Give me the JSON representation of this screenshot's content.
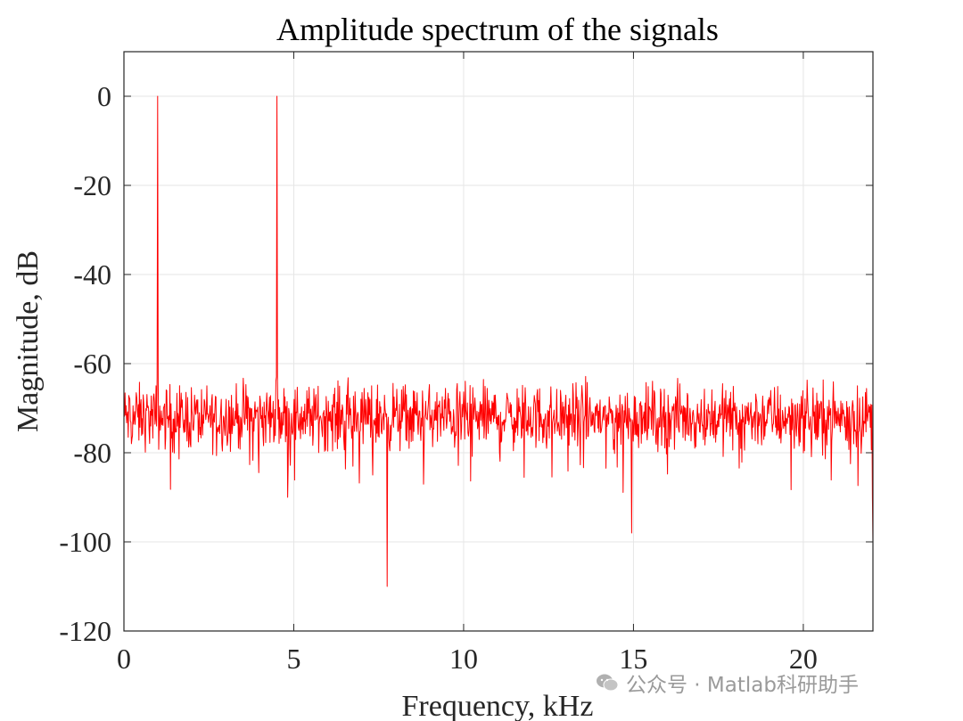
{
  "chart_data": {
    "type": "line",
    "title": "Amplitude spectrum of the signals",
    "xlabel": "Frequency, kHz",
    "ylabel": "Magnitude, dB",
    "xlim": [
      0,
      22.05
    ],
    "ylim": [
      -120,
      10
    ],
    "xticks": [
      0,
      5,
      10,
      15,
      20
    ],
    "yticks": [
      0,
      -20,
      -40,
      -60,
      -80,
      -100,
      -120
    ],
    "xtick_labels": [
      "0",
      "5",
      "10",
      "15",
      "20"
    ],
    "ytick_labels": [
      "0",
      "-20",
      "-40",
      "-60",
      "-80",
      "-100",
      "-120"
    ],
    "grid": true,
    "series": [
      {
        "color": "#ff0000",
        "noise_floor_db": -72,
        "noise_range_db": [
          -90,
          -61
        ],
        "peaks": [
          {
            "x": 1.0,
            "y": 0
          },
          {
            "x": 4.5,
            "y": 0
          }
        ],
        "dips": [
          {
            "x": 7.75,
            "y": -110
          },
          {
            "x": 14.95,
            "y": -98
          },
          {
            "x": 22.05,
            "y": -100
          }
        ]
      }
    ]
  },
  "watermark": {
    "text": "公众号 · Matlab科研助手",
    "icon": "wechat-icon"
  }
}
